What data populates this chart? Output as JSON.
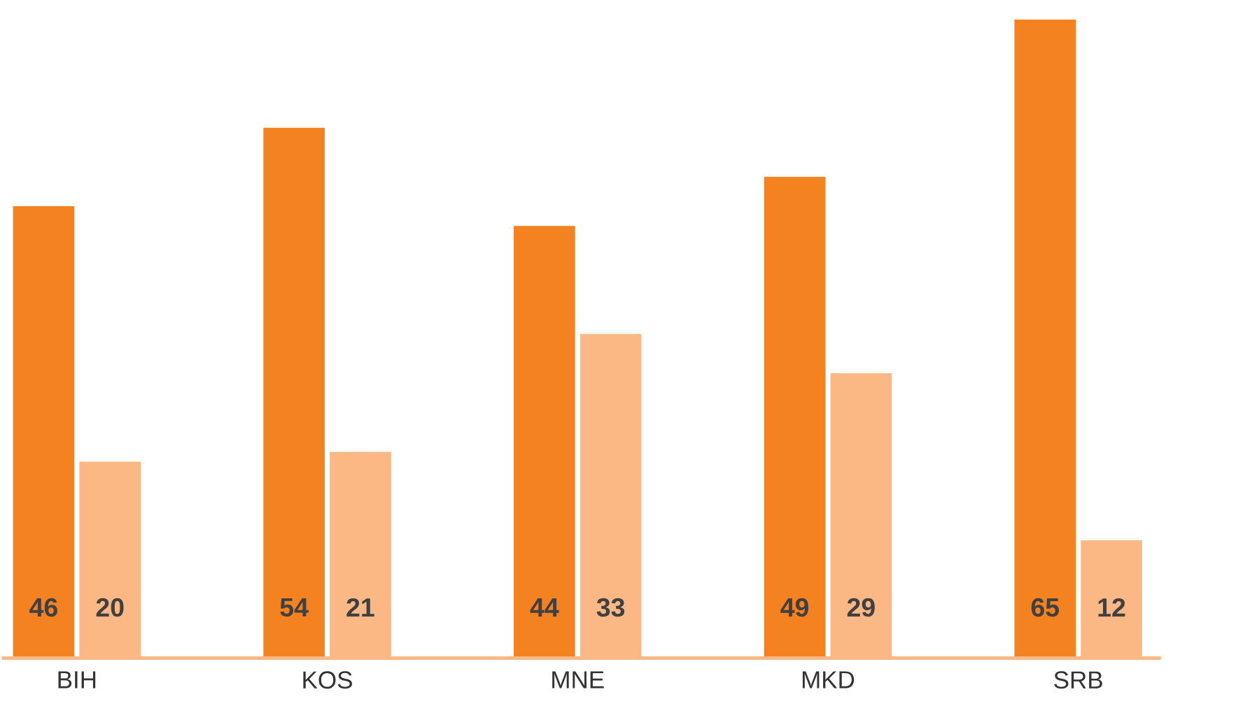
{
  "chart_data": {
    "type": "bar",
    "categories": [
      "BIH",
      "KOS",
      "MNE",
      "MKD",
      "SRB"
    ],
    "series": [
      {
        "color": "#f58220",
        "values": [
          46,
          54,
          44,
          49,
          65
        ]
      },
      {
        "color": "#fbb884",
        "values": [
          20,
          21,
          33,
          29,
          12
        ]
      }
    ],
    "data_labels": true
  }
}
